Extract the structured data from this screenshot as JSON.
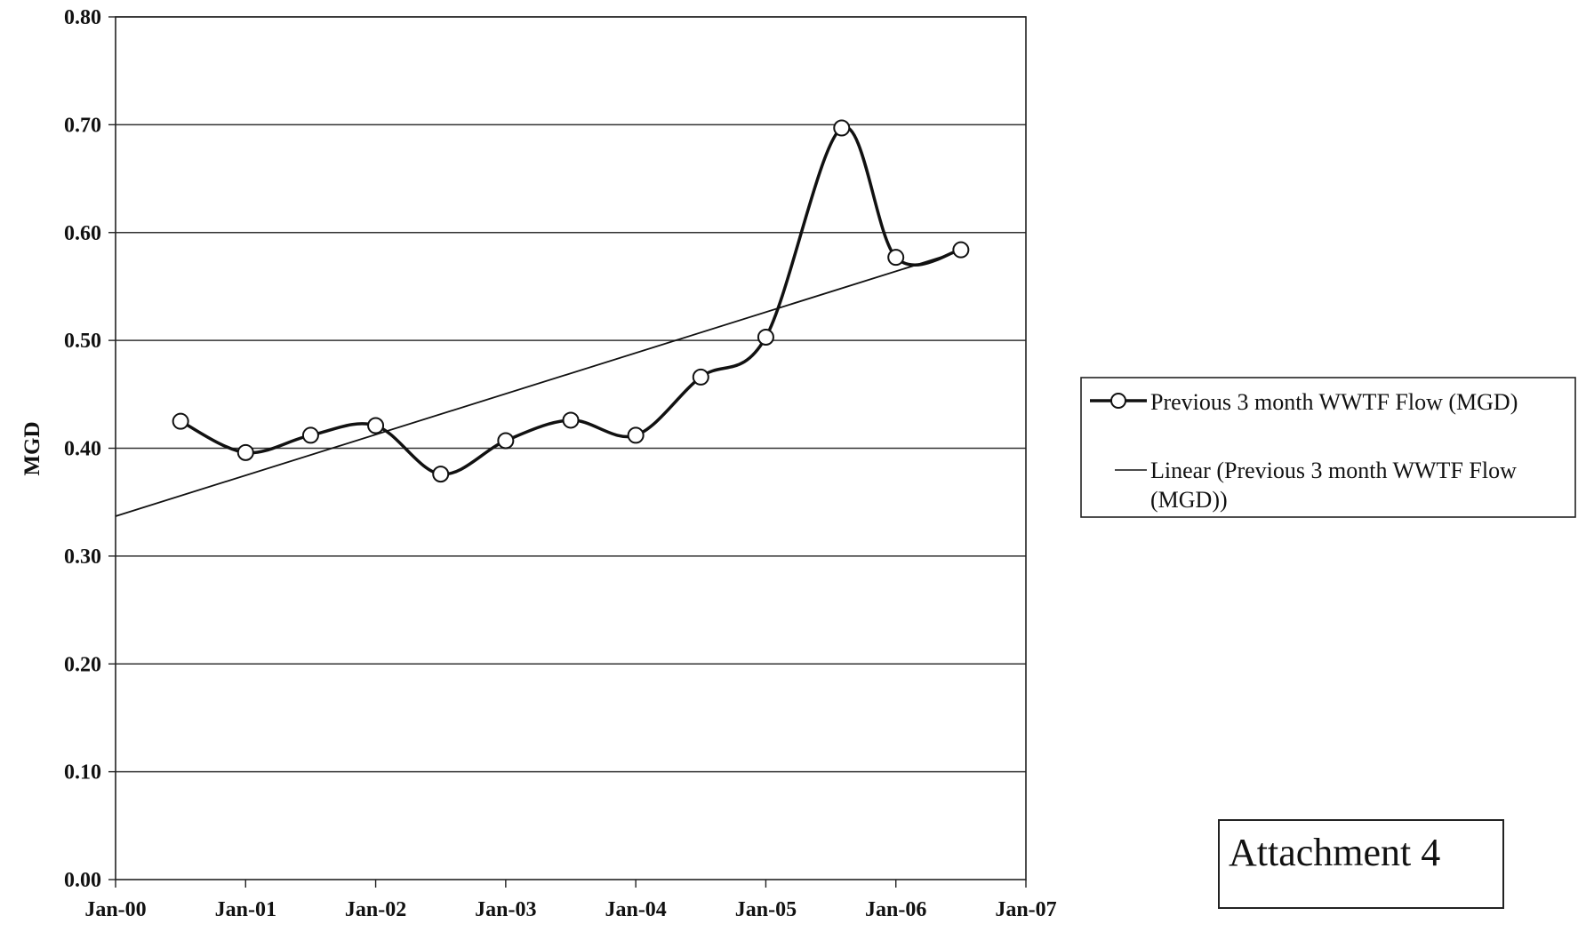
{
  "chart_data": {
    "type": "line",
    "title": "",
    "xlabel": "",
    "ylabel": "MGD",
    "ylim": [
      0,
      0.8
    ],
    "yticks": [
      "0.00",
      "0.10",
      "0.20",
      "0.30",
      "0.40",
      "0.50",
      "0.60",
      "0.70",
      "0.80"
    ],
    "xticks": [
      "Jan-00",
      "Jan-01",
      "Jan-02",
      "Jan-03",
      "Jan-04",
      "Jan-05",
      "Jan-06",
      "Jan-07"
    ],
    "xlim": [
      "2000-01",
      "2007-01"
    ],
    "grid": "horizontal",
    "legend_position": "right",
    "series": [
      {
        "name": "Previous 3 month WWTF Flow (MGD)",
        "style": "smoothed line with open circle markers",
        "x": [
          "2000-07",
          "2001-01",
          "2001-07",
          "2002-01",
          "2002-07",
          "2003-01",
          "2003-07",
          "2004-01",
          "2004-07",
          "2005-01",
          "2005-08",
          "2006-01",
          "2006-07"
        ],
        "y": [
          0.425,
          0.396,
          0.412,
          0.421,
          0.376,
          0.407,
          0.426,
          0.412,
          0.466,
          0.503,
          0.697,
          0.577,
          0.584
        ]
      },
      {
        "name": "Linear (Previous 3 month WWTF Flow (MGD))",
        "style": "thin straight trendline",
        "x": [
          "2000-01",
          "2006-07"
        ],
        "y": [
          0.337,
          0.583
        ]
      }
    ]
  },
  "legend": {
    "line1": "Previous 3 month WWTF Flow (MGD)",
    "line2a": "Linear (Previous 3 month WWTF Flow",
    "line2b": "(MGD))"
  },
  "attachment_label": "Attachment 4"
}
